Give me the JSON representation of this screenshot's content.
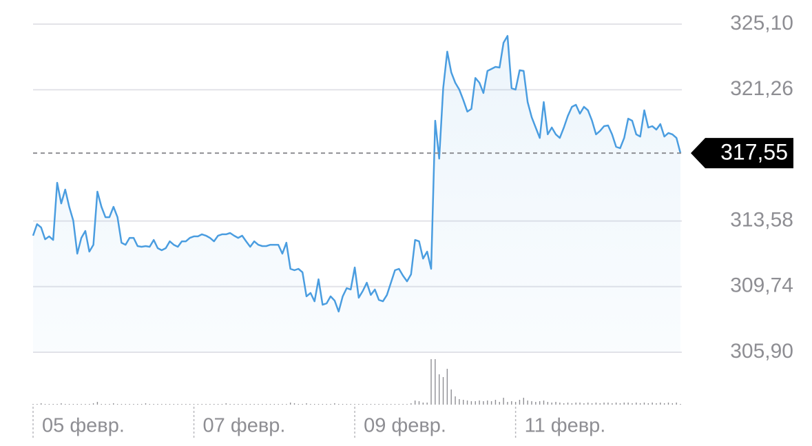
{
  "chart_data": {
    "type": "line",
    "color": "#4a9de0",
    "values": [
      312.72,
      313.4,
      313.2,
      312.51,
      312.68,
      312.47,
      315.82,
      314.61,
      315.42,
      314.41,
      313.6,
      311.67,
      312.59,
      313.0,
      311.79,
      312.19,
      315.3,
      314.41,
      313.8,
      313.8,
      314.41,
      313.8,
      312.31,
      312.19,
      312.59,
      312.59,
      312.11,
      312.07,
      312.11,
      312.07,
      312.47,
      311.99,
      311.87,
      311.99,
      312.39,
      312.19,
      312.07,
      312.39,
      312.39,
      312.59,
      312.68,
      312.68,
      312.8,
      312.72,
      312.59,
      312.39,
      312.72,
      312.8,
      312.8,
      312.88,
      312.72,
      312.59,
      312.72,
      312.39,
      312.07,
      312.39,
      312.19,
      312.11,
      312.11,
      312.19,
      312.19,
      312.19,
      311.67,
      312.31,
      310.78,
      310.7,
      310.78,
      310.58,
      309.17,
      309.37,
      308.88,
      310.17,
      308.68,
      308.76,
      309.17,
      308.92,
      308.28,
      309.17,
      309.65,
      309.57,
      310.86,
      309.09,
      309.49,
      309.97,
      309.25,
      309.57,
      308.96,
      308.88,
      309.25,
      309.97,
      310.7,
      310.78,
      310.38,
      310.05,
      310.46,
      312.47,
      312.39,
      311.38,
      311.79,
      310.78,
      319.45,
      317.23,
      321.35,
      323.49,
      322.28,
      321.67,
      321.27,
      320.66,
      319.98,
      320.14,
      321.95,
      321.67,
      321.07,
      322.36,
      322.48,
      322.6,
      322.56,
      324.01,
      324.41,
      321.35,
      321.27,
      322.4,
      322.36,
      320.54,
      319.65,
      319.05,
      318.44,
      320.54,
      318.65,
      319.05,
      318.65,
      318.44,
      319.05,
      319.73,
      320.26,
      320.38,
      319.86,
      320.26,
      320.06,
      319.45,
      318.65,
      318.85,
      319.13,
      319.17,
      318.65,
      317.92,
      317.84,
      318.44,
      319.57,
      319.45,
      318.65,
      318.52,
      320.06,
      319.05,
      319.13,
      318.93,
      319.25,
      318.52,
      318.73,
      318.65,
      318.44,
      317.55
    ],
    "volume": {
      "color": "#8e8e93",
      "values": [
        1,
        1,
        2,
        1,
        1,
        1,
        1,
        2,
        1,
        1,
        1,
        1,
        1,
        1,
        1,
        2,
        4,
        1,
        1,
        1,
        2,
        1,
        1,
        1,
        1,
        1,
        1,
        1,
        2,
        1,
        1,
        1,
        1,
        1,
        1,
        1,
        1,
        1,
        1,
        1,
        1,
        1,
        1,
        1,
        1,
        1,
        1,
        1,
        2,
        1,
        1,
        1,
        1,
        1,
        1,
        1,
        1,
        1,
        1,
        1,
        1,
        1,
        1,
        1,
        3,
        2,
        1,
        1,
        2,
        1,
        1,
        1,
        1,
        1,
        1,
        2,
        1,
        1,
        1,
        1,
        1,
        1,
        1,
        1,
        1,
        1,
        1,
        1,
        1,
        1,
        1,
        1,
        1,
        1,
        2,
        6,
        5,
        3,
        3,
        66,
        66,
        44,
        40,
        52,
        22,
        12,
        8,
        7,
        6,
        5,
        5,
        6,
        5,
        6,
        5,
        7,
        4,
        10,
        4,
        5,
        4,
        7,
        10,
        6,
        5,
        4,
        5,
        6,
        4,
        3,
        4,
        3,
        2,
        3,
        2,
        3,
        3,
        2,
        3,
        2,
        3,
        2,
        3,
        3,
        2,
        3,
        2,
        3,
        3,
        2,
        3,
        2,
        3,
        2,
        3,
        2,
        3,
        2,
        3,
        2,
        3,
        1
      ]
    },
    "xlim": [
      0,
      161
    ],
    "xticks": [
      {
        "value": 0,
        "label": "05 февр."
      },
      {
        "value": 40,
        "label": "07 февр."
      },
      {
        "value": 80,
        "label": "09 февр."
      },
      {
        "value": 120,
        "label": "11 февр."
      }
    ],
    "ylim": [
      305.9,
      325.1
    ],
    "yticks": [
      {
        "value": 305.9,
        "label": "305,90"
      },
      {
        "value": 309.74,
        "label": "309,74"
      },
      {
        "value": 313.58,
        "label": "313,58"
      },
      {
        "value": 321.26,
        "label": "321,26"
      },
      {
        "value": 325.1,
        "label": "325,10"
      }
    ],
    "grid": true,
    "last_price": {
      "value": 317.55,
      "label": "317,55"
    }
  }
}
